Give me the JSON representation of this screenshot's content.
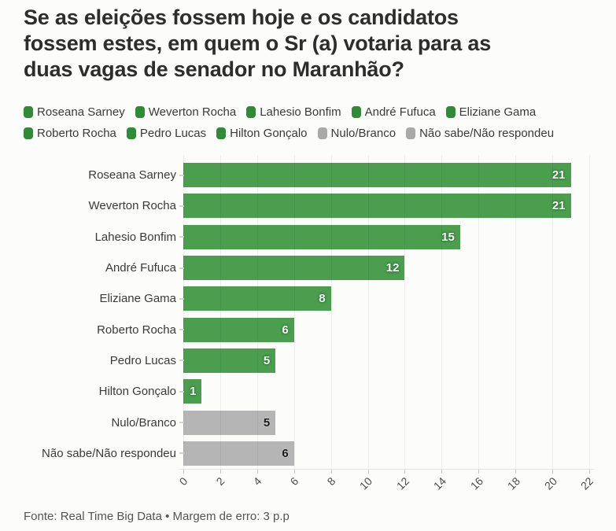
{
  "page": {
    "background": "#fcfcfa"
  },
  "header": {
    "title_lines": [
      "Se as eleições fossem hoje e os candidatos",
      "fossem estes, em quem o Sr (a) votaria para as",
      "duas vagas de senador no Maranhão?"
    ]
  },
  "legend": {
    "green_color": "#2f8b35",
    "gray_color": "#a9a9a9"
  },
  "chart_data": {
    "type": "bar",
    "orientation": "horizontal",
    "title": "Se as eleições fossem hoje e os candidatos fossem estes, em quem o Sr (a) votaria para as duas vagas de senador no Maranhão?",
    "categories": [
      "Roseana Sarney",
      "Weverton Rocha",
      "Lahesio Bonfim",
      "André Fufuca",
      "Eliziane Gama",
      "Roberto Rocha",
      "Pedro Lucas",
      "Hilton Gonçalo",
      "Nulo/Branco",
      "Não sabe/Não respondeu"
    ],
    "values": [
      21,
      21,
      15,
      12,
      8,
      6,
      5,
      1,
      5,
      6
    ],
    "bar_colors": [
      "green",
      "green",
      "green",
      "green",
      "green",
      "green",
      "green",
      "green",
      "gray",
      "gray"
    ],
    "colors": {
      "green": "#4b9e4e",
      "gray": "#b5b5b5"
    },
    "xlim": [
      0,
      22
    ],
    "x_ticks": [
      0,
      2,
      4,
      6,
      8,
      10,
      12,
      14,
      16,
      18,
      20,
      22
    ],
    "grid": "vertical",
    "legend_position": "top",
    "value_label_position": "inside-end"
  },
  "footer": {
    "text": "Fonte: Real Time Big Data • Margem de erro: 3 p.p"
  }
}
